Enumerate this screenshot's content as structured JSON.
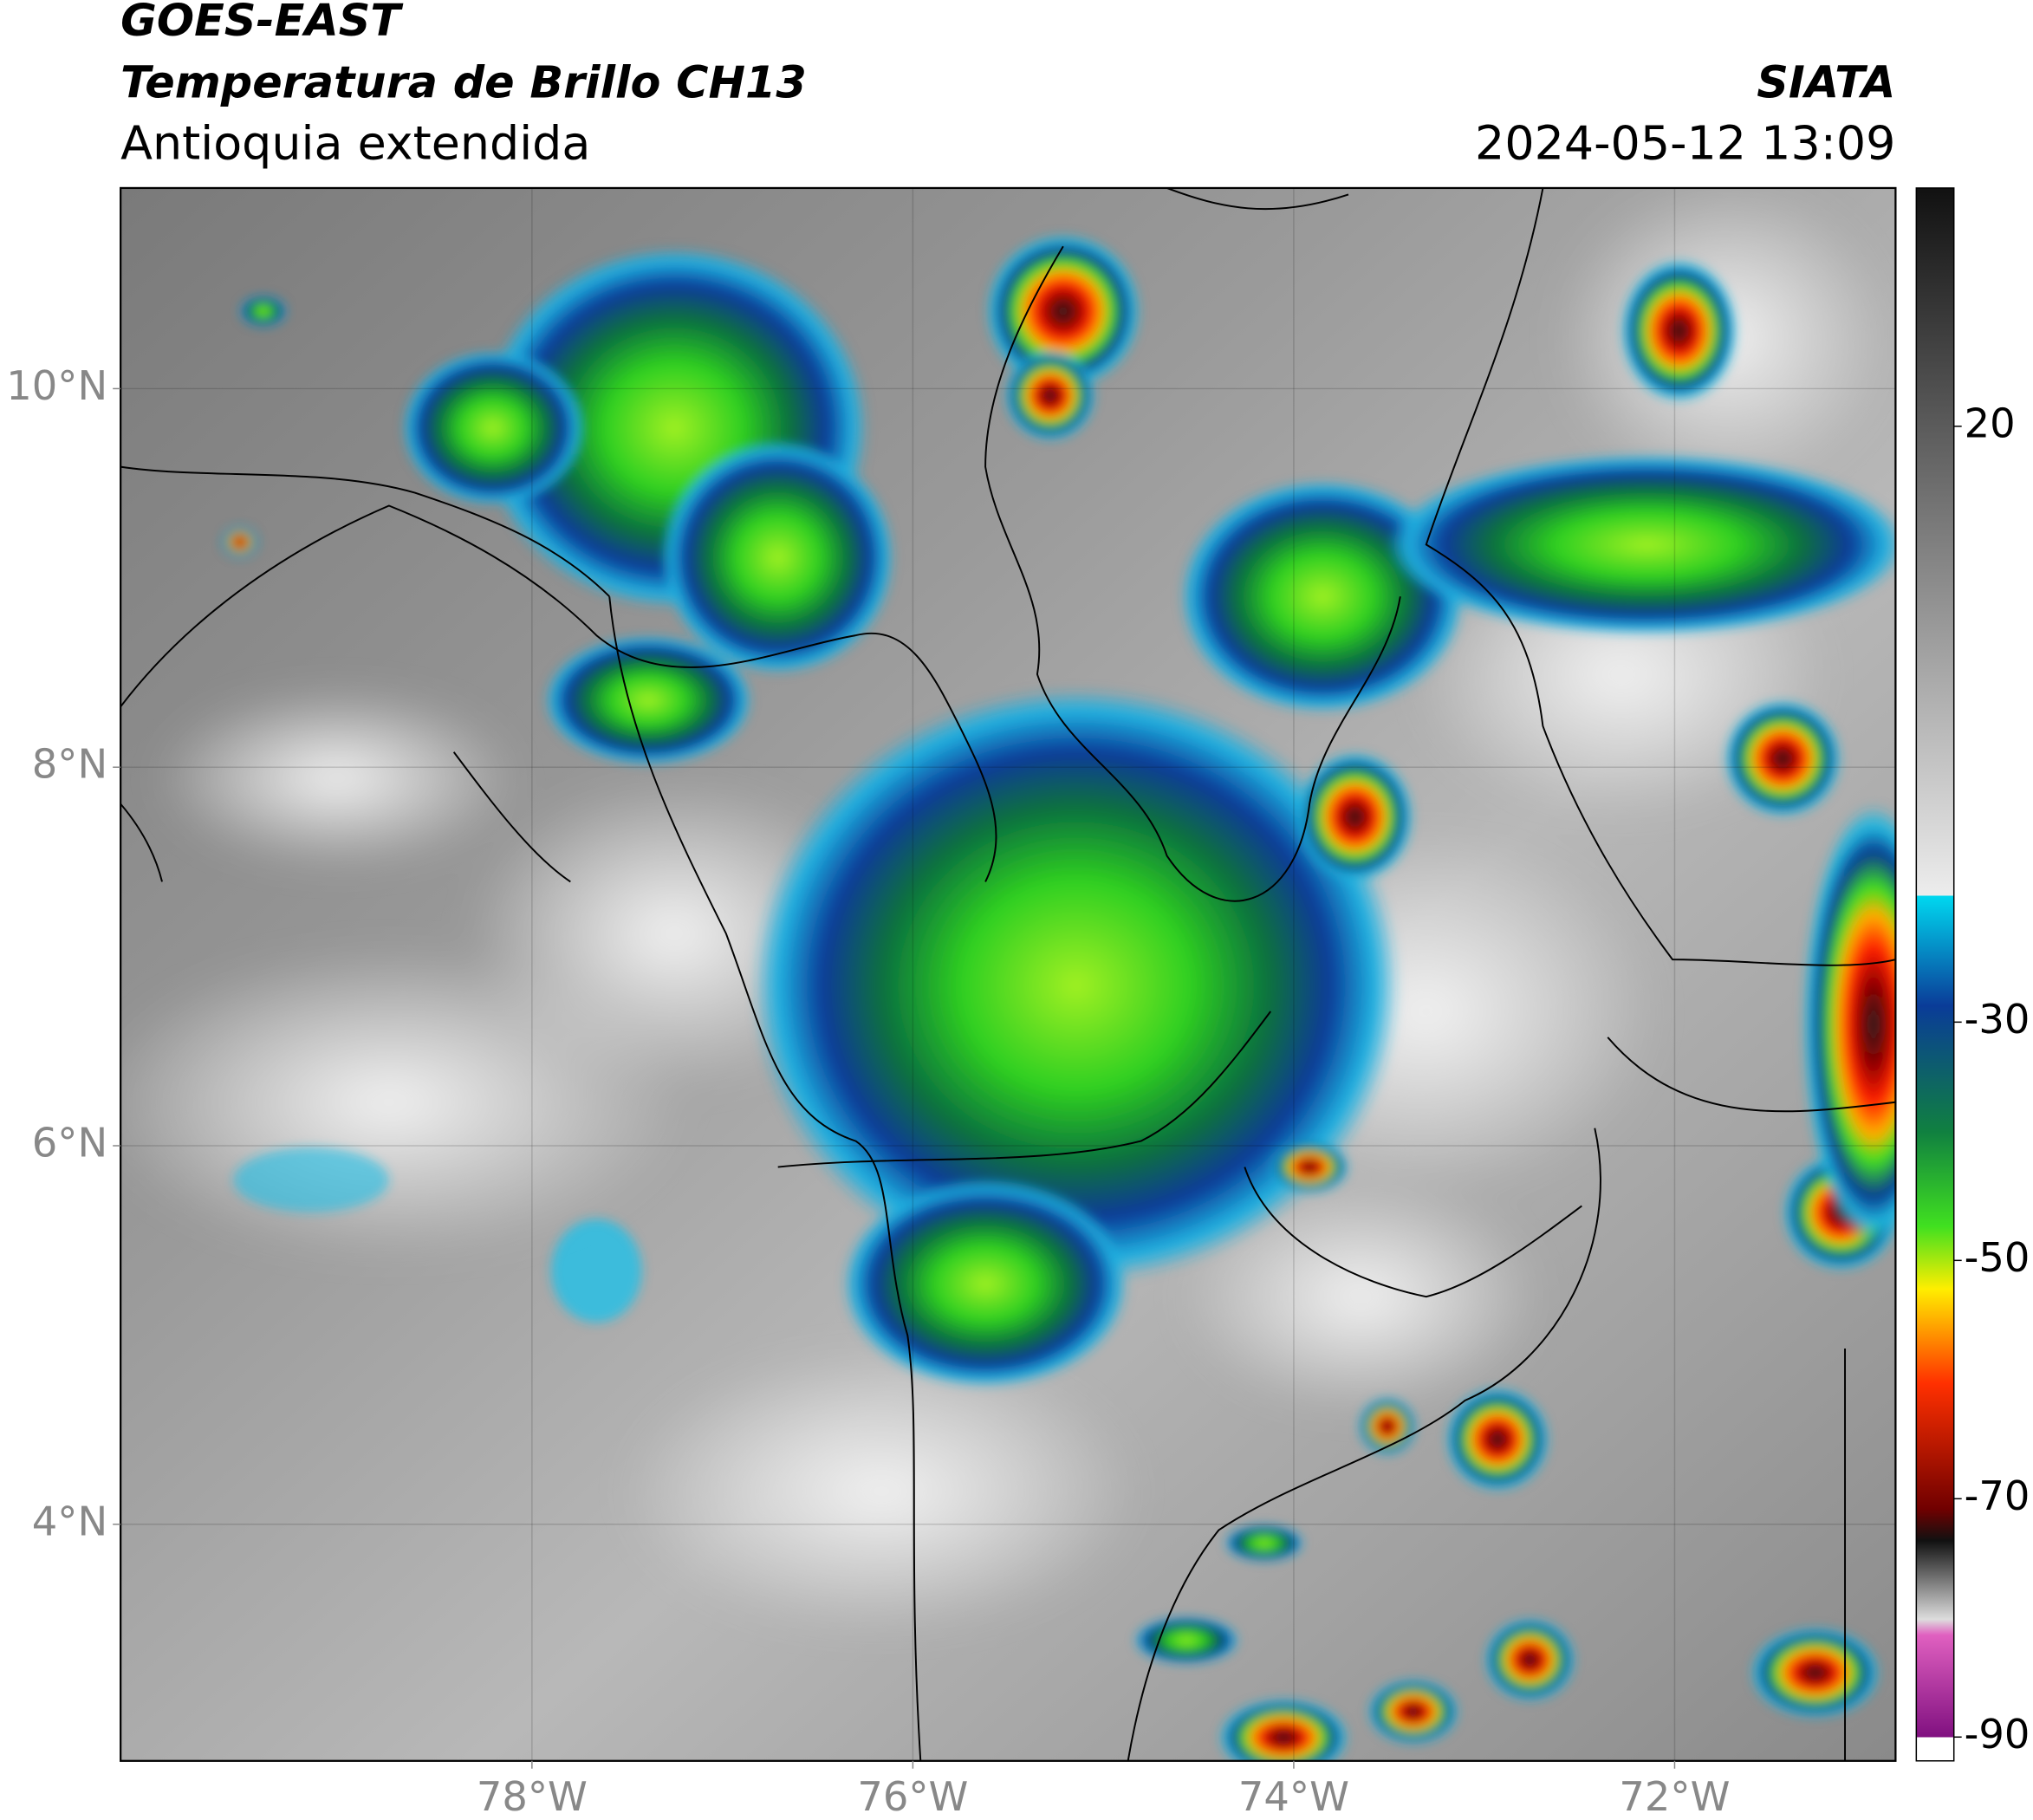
{
  "header": {
    "title": "GOES-EAST",
    "subtitle": "Temperatura de Brillo CH13",
    "region": "Antioquia extendida",
    "source": "SIATA",
    "datetime": "2024-05-12 13:09"
  },
  "chart_data": {
    "type": "map",
    "xlim": [
      -80.16,
      -70.84
    ],
    "ylim": [
      2.75,
      11.06
    ],
    "xticks": [
      {
        "value": -78,
        "label": "78°W"
      },
      {
        "value": -76,
        "label": "76°W"
      },
      {
        "value": -74,
        "label": "74°W"
      },
      {
        "value": -72,
        "label": "72°W"
      }
    ],
    "yticks": [
      {
        "value": 10,
        "label": "10°N"
      },
      {
        "value": 8,
        "label": "8°N"
      },
      {
        "value": 6,
        "label": "6°N"
      },
      {
        "value": 4,
        "label": "4°N"
      }
    ],
    "grid": true,
    "colorbar": {
      "lim": [
        -92,
        40
      ],
      "ticks": [
        20,
        -30,
        -50,
        -70,
        -90
      ]
    }
  }
}
